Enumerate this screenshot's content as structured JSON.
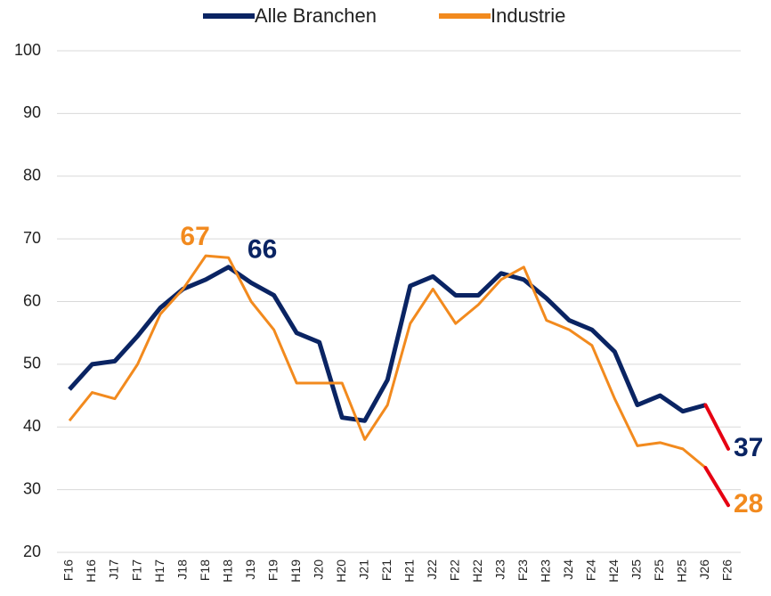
{
  "chart_data": {
    "type": "line",
    "categories": [
      "F16",
      "H16",
      "J17",
      "F17",
      "H17",
      "J18",
      "F18",
      "H18",
      "J19",
      "F19",
      "H19",
      "J20",
      "H20",
      "J21",
      "F21",
      "H21",
      "J22",
      "F22",
      "H22",
      "J23",
      "F23",
      "H23",
      "J24",
      "F24",
      "H24",
      "J25",
      "F25",
      "H25",
      "J26",
      "F26"
    ],
    "series": [
      {
        "name": "Alle Branchen",
        "color": "#0a2463",
        "width": 5,
        "values": [
          46,
          50,
          50.5,
          54.5,
          59,
          62,
          63.5,
          65.5,
          63,
          61,
          55,
          53.5,
          41.5,
          41,
          47.5,
          62.5,
          64,
          61,
          61,
          64.5,
          63.5,
          60.5,
          57,
          55.5,
          52,
          43.5,
          45,
          42.5,
          43.5,
          36.5
        ],
        "value_labels": [
          null,
          null,
          null,
          null,
          null,
          null,
          null,
          "66",
          null,
          null,
          null,
          null,
          null,
          null,
          null,
          null,
          null,
          null,
          null,
          null,
          null,
          null,
          null,
          null,
          null,
          null,
          null,
          null,
          null,
          "37"
        ]
      },
      {
        "name": "Industrie",
        "color": "#f28a1e",
        "width": 3,
        "values": [
          41,
          45.5,
          44.5,
          50,
          58,
          62,
          67.3,
          67,
          60,
          55.5,
          47,
          47,
          47,
          38,
          43.5,
          56.5,
          62,
          56.5,
          59.5,
          63.5,
          65.5,
          57,
          55.5,
          53,
          44.5,
          37,
          37.5,
          36.5,
          33.5,
          27.5
        ],
        "value_labels": [
          null,
          null,
          null,
          null,
          null,
          null,
          "67",
          null,
          null,
          null,
          null,
          null,
          null,
          null,
          null,
          null,
          null,
          null,
          null,
          null,
          null,
          null,
          null,
          null,
          null,
          null,
          null,
          null,
          null,
          "28"
        ]
      }
    ],
    "last_segment_color": "#e60012",
    "ylim": [
      20,
      100
    ],
    "yticks": [
      20,
      30,
      40,
      50,
      60,
      70,
      80,
      90,
      100
    ],
    "grid": true,
    "legend": "top"
  }
}
